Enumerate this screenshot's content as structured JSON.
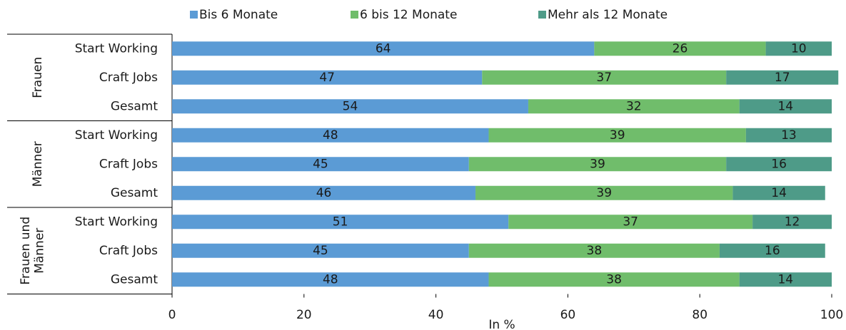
{
  "chart_data": {
    "type": "bar",
    "orientation": "horizontal",
    "stacked": true,
    "title": "",
    "xlabel": "In %",
    "ylabel": "",
    "xlim": [
      0,
      100
    ],
    "xticks": [
      0,
      20,
      40,
      60,
      80,
      100
    ],
    "grid": false,
    "legend_position": "top",
    "groups": [
      {
        "name": "Frauen",
        "categories": [
          "Start Working",
          "Craft Jobs",
          "Gesamt"
        ]
      },
      {
        "name": "Männer",
        "categories": [
          "Start Working",
          "Craft Jobs",
          "Gesamt"
        ]
      },
      {
        "name": "Frauen und Männer",
        "categories": [
          "Start Working",
          "Craft Jobs",
          "Gesamt"
        ]
      }
    ],
    "series": [
      {
        "name": "Bis 6 Monate",
        "color": "#5B9BD5",
        "values": [
          64,
          47,
          54,
          48,
          45,
          46,
          51,
          45,
          48
        ]
      },
      {
        "name": "6 bis 12 Monate",
        "color": "#70BD6B",
        "values": [
          26,
          37,
          32,
          39,
          39,
          39,
          37,
          38,
          38
        ]
      },
      {
        "name": "Mehr als 12 Monate",
        "color": "#4E9B88",
        "values": [
          10,
          17,
          14,
          13,
          16,
          14,
          12,
          16,
          14
        ]
      }
    ]
  }
}
